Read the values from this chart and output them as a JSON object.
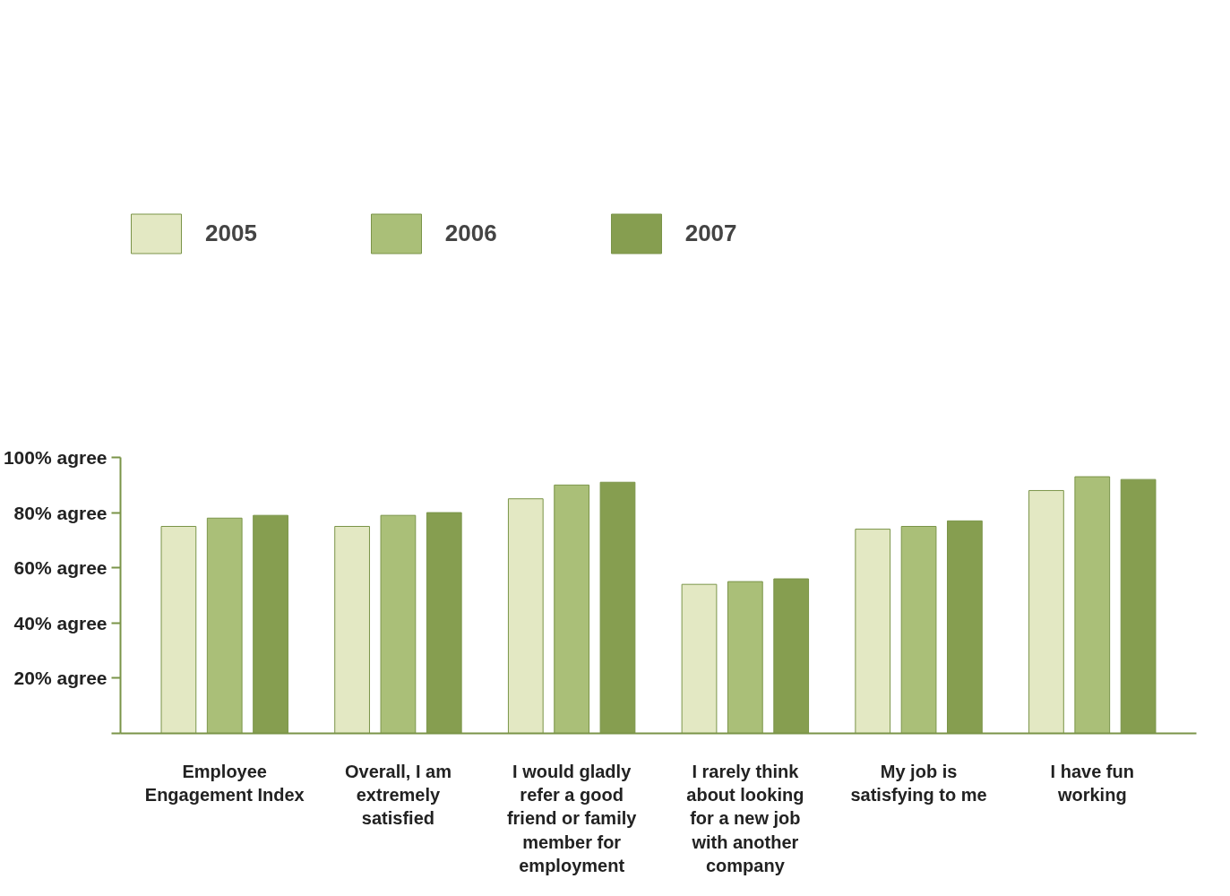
{
  "chart_data": {
    "type": "bar",
    "categories": [
      "Employee Engagement Index",
      "Overall, I am extremely satisfied",
      "I would gladly refer a good friend or family member for employment",
      "I rarely think about looking for a new job with another company",
      "My job is satisfying to me",
      "I have fun working"
    ],
    "series": [
      {
        "name": "2005",
        "color": "#e3e8c3",
        "values": [
          75,
          75,
          85,
          54,
          74,
          88
        ]
      },
      {
        "name": "2006",
        "color": "#aabf78",
        "values": [
          78,
          79,
          90,
          55,
          75,
          93
        ]
      },
      {
        "name": "2007",
        "color": "#869e50",
        "values": [
          79,
          80,
          91,
          56,
          77,
          92
        ]
      }
    ],
    "ylim": [
      0,
      100
    ],
    "yticks": [
      {
        "value": 0,
        "label": null
      },
      {
        "value": 20,
        "label": "20% agree"
      },
      {
        "value": 40,
        "label": "40% agree"
      },
      {
        "value": 60,
        "label": "60% agree"
      },
      {
        "value": 80,
        "label": "80% agree"
      },
      {
        "value": 100,
        "label": "100% agree"
      }
    ],
    "grid": false,
    "legend": "top"
  }
}
